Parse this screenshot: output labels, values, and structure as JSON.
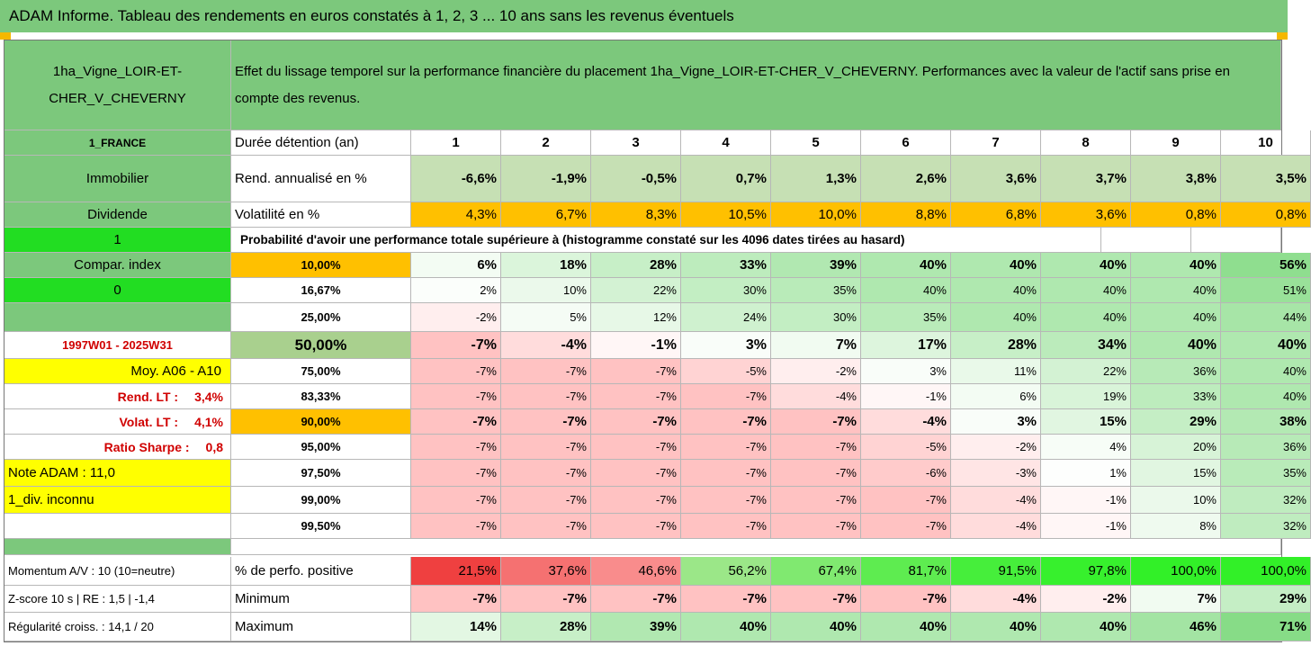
{
  "title": "ADAM Informe. Tableau des rendements en euros constatés à 1, 2, 3 ... 10 ans sans les revenus éventuels",
  "asset_name": "1ha_Vigne_LOIR-ET-CHER_V_CHEVERNY",
  "header_text": "Effet du lissage temporel sur la performance financière du placement 1ha_Vigne_LOIR-ET-CHER_V_CHEVERNY. Performances avec la valeur de l'actif sans prise en compte des revenus.",
  "left_labels": {
    "country": "1_FRANCE",
    "category": "Immobilier",
    "dividend": "Dividende",
    "one": "1",
    "compar": "Compar. index",
    "zero": "0",
    "period": "1997W01 - 2025W31",
    "moy": "Moy. A06 - A10",
    "rend_label": "Rend. LT :",
    "rend_value": "3,4%",
    "volat_label": "Volat. LT :",
    "volat_value": "4,1%",
    "sharpe_label": "Ratio Sharpe :",
    "sharpe_value": "0,8",
    "note": "Note ADAM : 11,0",
    "div": "1_div. inconnu",
    "momentum": "Momentum A/V : 10 (10=neutre)",
    "zscore": "Z-score 10 s  |  RE : 1,5  |  -1,4",
    "regularite": "Régularité croiss. : 14,1 / 20"
  },
  "duration": {
    "label": "Durée détention (an)",
    "years": [
      "1",
      "2",
      "3",
      "4",
      "5",
      "6",
      "7",
      "8",
      "9",
      "10"
    ]
  },
  "rend": {
    "label": "Rend. annualisé en %",
    "values": [
      "-6,6%",
      "-1,9%",
      "-0,5%",
      "0,7%",
      "1,3%",
      "2,6%",
      "3,6%",
      "3,7%",
      "3,8%",
      "3,5%"
    ]
  },
  "volat": {
    "label": "Volatilité en %",
    "values": [
      "4,3%",
      "6,7%",
      "8,3%",
      "10,5%",
      "10,0%",
      "8,8%",
      "6,8%",
      "3,6%",
      "0,8%",
      "0,8%"
    ]
  },
  "prob_label": "Probabilité d'avoir une performance totale supérieure à (histogramme constaté sur les 4096 dates tirées au hasard)",
  "percentiles": [
    {
      "label": "10,00%",
      "values": [
        "6%",
        "18%",
        "28%",
        "33%",
        "39%",
        "40%",
        "40%",
        "40%",
        "40%",
        "56%"
      ]
    },
    {
      "label": "16,67%",
      "values": [
        "2%",
        "10%",
        "22%",
        "30%",
        "35%",
        "40%",
        "40%",
        "40%",
        "40%",
        "51%"
      ]
    },
    {
      "label": "25,00%",
      "values": [
        "-2%",
        "5%",
        "12%",
        "24%",
        "30%",
        "35%",
        "40%",
        "40%",
        "40%",
        "44%"
      ]
    },
    {
      "label": "50,00%",
      "values": [
        "-7%",
        "-4%",
        "-1%",
        "3%",
        "7%",
        "17%",
        "28%",
        "34%",
        "40%",
        "40%"
      ]
    },
    {
      "label": "75,00%",
      "values": [
        "-7%",
        "-7%",
        "-7%",
        "-5%",
        "-2%",
        "3%",
        "11%",
        "22%",
        "36%",
        "40%"
      ]
    },
    {
      "label": "83,33%",
      "values": [
        "-7%",
        "-7%",
        "-7%",
        "-7%",
        "-4%",
        "-1%",
        "6%",
        "19%",
        "33%",
        "40%"
      ]
    },
    {
      "label": "90,00%",
      "values": [
        "-7%",
        "-7%",
        "-7%",
        "-7%",
        "-7%",
        "-4%",
        "3%",
        "15%",
        "29%",
        "38%"
      ]
    },
    {
      "label": "95,00%",
      "values": [
        "-7%",
        "-7%",
        "-7%",
        "-7%",
        "-7%",
        "-5%",
        "-2%",
        "4%",
        "20%",
        "36%"
      ]
    },
    {
      "label": "97,50%",
      "values": [
        "-7%",
        "-7%",
        "-7%",
        "-7%",
        "-7%",
        "-6%",
        "-3%",
        "1%",
        "15%",
        "35%"
      ]
    },
    {
      "label": "99,00%",
      "values": [
        "-7%",
        "-7%",
        "-7%",
        "-7%",
        "-7%",
        "-7%",
        "-4%",
        "-1%",
        "10%",
        "32%"
      ]
    },
    {
      "label": "99,50%",
      "values": [
        "-7%",
        "-7%",
        "-7%",
        "-7%",
        "-7%",
        "-7%",
        "-4%",
        "-1%",
        "8%",
        "32%"
      ]
    }
  ],
  "positive": {
    "label": "% de perfo. positive",
    "values": [
      "21,5%",
      "37,6%",
      "46,6%",
      "56,2%",
      "67,4%",
      "81,7%",
      "91,5%",
      "97,8%",
      "100,0%",
      "100,0%"
    ]
  },
  "minimum": {
    "label": "Minimum",
    "values": [
      "-7%",
      "-7%",
      "-7%",
      "-7%",
      "-7%",
      "-7%",
      "-4%",
      "-2%",
      "7%",
      "29%"
    ]
  },
  "maximum": {
    "label": "Maximum",
    "values": [
      "14%",
      "28%",
      "39%",
      "40%",
      "40%",
      "40%",
      "40%",
      "40%",
      "46%",
      "71%"
    ]
  },
  "colors": {
    "header_green": "#7cc87c",
    "bright_green": "#22dd22",
    "yellow": "#ffff00",
    "orange": "#ffc000",
    "label_red": "#d00000",
    "rend_green": "#c6e0b4",
    "sand": "#e2efd9"
  }
}
